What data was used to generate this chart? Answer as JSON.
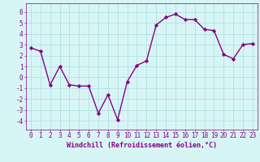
{
  "x": [
    0,
    1,
    2,
    3,
    4,
    5,
    6,
    7,
    8,
    9,
    10,
    11,
    12,
    13,
    14,
    15,
    16,
    17,
    18,
    19,
    20,
    21,
    22,
    23
  ],
  "y": [
    2.7,
    2.4,
    -0.7,
    1.0,
    -0.7,
    -0.8,
    -0.8,
    -3.3,
    -1.6,
    -3.9,
    -0.4,
    1.1,
    1.5,
    4.8,
    5.5,
    5.8,
    5.3,
    5.3,
    4.4,
    4.3,
    2.1,
    1.7,
    3.0,
    3.1
  ],
  "line_color": "#880088",
  "marker": "D",
  "markersize": 2.2,
  "linewidth": 1.0,
  "xlabel": "Windchill (Refroidissement éolien,°C)",
  "xlabel_fontsize": 6.0,
  "xlabel_color": "#880088",
  "ylabel_ticks": [
    -4,
    -3,
    -2,
    -1,
    0,
    1,
    2,
    3,
    4,
    5,
    6
  ],
  "xlim": [
    -0.5,
    23.5
  ],
  "ylim": [
    -4.8,
    6.8
  ],
  "bg_color": "#d8f5f5",
  "grid_color": "#aadddd",
  "tick_color": "#880088",
  "tick_fontsize": 5.5,
  "xticks": [
    0,
    1,
    2,
    3,
    4,
    5,
    6,
    7,
    8,
    9,
    10,
    11,
    12,
    13,
    14,
    15,
    16,
    17,
    18,
    19,
    20,
    21,
    22,
    23
  ],
  "xtick_labels": [
    "0",
    "1",
    "2",
    "3",
    "4",
    "5",
    "6",
    "7",
    "8",
    "9",
    "10",
    "11",
    "12",
    "13",
    "14",
    "15",
    "16",
    "17",
    "18",
    "19",
    "20",
    "21",
    "22",
    "23"
  ]
}
